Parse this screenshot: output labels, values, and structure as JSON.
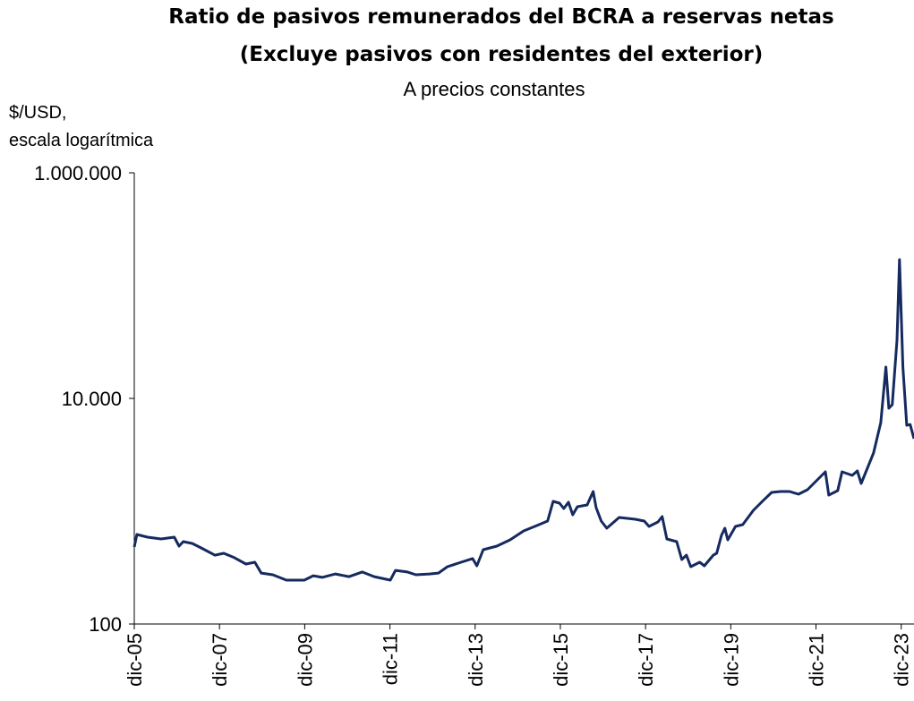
{
  "chart_data": {
    "type": "line",
    "title": [
      "Ratio de pasivos remunerados del BCRA a reservas netas",
      "(Excluye pasivos con residentes del exterior)"
    ],
    "subtitle": "A precios constantes",
    "y_label": [
      "$/USD,",
      "escala logarítmica"
    ],
    "log_scale": true,
    "color": "#152a5f",
    "x": [
      2005.92,
      2005.98,
      2006.23,
      2006.55,
      2006.86,
      2006.97,
      2007.07,
      2007.28,
      2007.49,
      2007.81,
      2008.02,
      2008.27,
      2008.54,
      2008.75,
      2008.9,
      2009.17,
      2009.49,
      2009.91,
      2010.12,
      2010.33,
      2010.64,
      2010.96,
      2011.27,
      2011.55,
      2011.93,
      2012.05,
      2012.33,
      2012.53,
      2012.85,
      2013.06,
      2013.27,
      2013.59,
      2013.86,
      2013.96,
      2014.11,
      2014.43,
      2014.74,
      2015.06,
      2015.37,
      2015.62,
      2015.75,
      2015.9,
      2016.0,
      2016.11,
      2016.21,
      2016.32,
      2016.55,
      2016.69,
      2016.76,
      2016.88,
      2017.01,
      2017.3,
      2017.68,
      2017.89,
      2018.0,
      2018.21,
      2018.31,
      2018.42,
      2018.65,
      2018.77,
      2018.88,
      2018.98,
      2019.19,
      2019.3,
      2019.51,
      2019.59,
      2019.7,
      2019.78,
      2019.85,
      2020.03,
      2020.2,
      2020.45,
      2020.66,
      2020.88,
      2021.09,
      2021.3,
      2021.51,
      2021.72,
      2021.93,
      2022.14,
      2022.22,
      2022.43,
      2022.53,
      2022.77,
      2022.89,
      2022.98,
      2023.1,
      2023.27,
      2023.44,
      2023.56,
      2023.63,
      2023.71,
      2023.82,
      2023.88,
      2023.96,
      2024.05,
      2024.13,
      2024.22
    ],
    "values": [
      482,
      622,
      589,
      567,
      589,
      490,
      537,
      518,
      473,
      408,
      424,
      387,
      340,
      353,
      283,
      273,
      245,
      245,
      268,
      259,
      278,
      263,
      289,
      263,
      245,
      299,
      289,
      273,
      278,
      283,
      322,
      353,
      380,
      328,
      456,
      490,
      557,
      669,
      746,
      818,
      1222,
      1178,
      1057,
      1200,
      929,
      1096,
      1136,
      1495,
      1076,
      818,
      707,
      880,
      849,
      818,
      733,
      803,
      896,
      567,
      537,
      373,
      408,
      322,
      353,
      328,
      408,
      424,
      611,
      707,
      557,
      733,
      760,
      1018,
      1222,
      1468,
      1495,
      1495,
      1415,
      1550,
      1862,
      2236,
      1390,
      1522,
      2236,
      2077,
      2275,
      1763,
      2275,
      3281,
      6107,
      18970,
      8185,
      8797,
      32800,
      169800,
      18970,
      5780,
      5870,
      4395
    ],
    "xlim": [
      2005.92,
      2024.22
    ],
    "xticks": [
      {
        "value": 2005.92,
        "label": "dic-05"
      },
      {
        "value": 2007.92,
        "label": "dic-07"
      },
      {
        "value": 2009.92,
        "label": "dic-09"
      },
      {
        "value": 2011.92,
        "label": "dic-11"
      },
      {
        "value": 2013.92,
        "label": "dic-13"
      },
      {
        "value": 2015.92,
        "label": "dic-15"
      },
      {
        "value": 2017.92,
        "label": "dic-17"
      },
      {
        "value": 2019.92,
        "label": "dic-19"
      },
      {
        "value": 2021.92,
        "label": "dic-21"
      },
      {
        "value": 2023.92,
        "label": "dic-23"
      }
    ],
    "ylim": [
      100,
      1000000
    ],
    "yticks": [
      100,
      {
        "value": 10000,
        "label": "10.000"
      },
      {
        "value": 1000000,
        "label": "1.000.000"
      }
    ],
    "grid": false
  }
}
